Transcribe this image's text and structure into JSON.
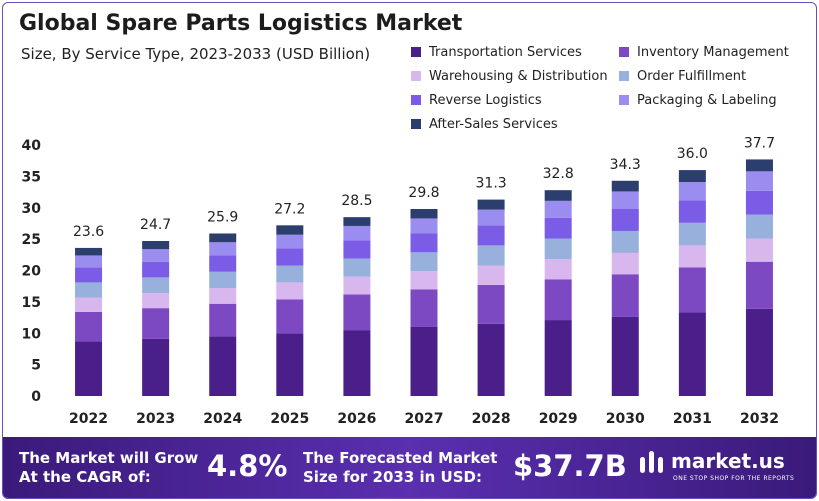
{
  "header": {
    "title": "Global Spare Parts Logistics Market",
    "subtitle": "Size, By Service Type, 2023-2033 (USD Billion)"
  },
  "colors": {
    "Transportation Services": "#4b1f8a",
    "Inventory Management": "#7d49c2",
    "Warehousing & Distribution": "#d8b6ee",
    "Order Fulfillment": "#98b0dc",
    "Reverse Logistics": "#7b5ce6",
    "Packaging & Labeling": "#9b8cf0",
    "After-Sales Services": "#2c3e6e"
  },
  "chart_data": {
    "type": "bar",
    "stacked": true,
    "categories": [
      "2022",
      "2023",
      "2024",
      "2025",
      "2026",
      "2027",
      "2028",
      "2029",
      "2030",
      "2031",
      "2032"
    ],
    "totals": [
      23.6,
      24.7,
      25.9,
      27.2,
      28.5,
      29.8,
      31.3,
      32.8,
      34.3,
      36.0,
      37.7
    ],
    "series": [
      {
        "name": "Transportation Services",
        "values": [
          8.7,
          9.1,
          9.5,
          10.0,
          10.5,
          11.0,
          11.5,
          12.1,
          12.6,
          13.3,
          13.9
        ]
      },
      {
        "name": "Inventory Management",
        "values": [
          4.7,
          4.9,
          5.2,
          5.4,
          5.7,
          6.0,
          6.2,
          6.5,
          6.8,
          7.2,
          7.5
        ]
      },
      {
        "name": "Warehousing & Distribution",
        "values": [
          2.3,
          2.4,
          2.5,
          2.7,
          2.8,
          2.9,
          3.1,
          3.2,
          3.4,
          3.5,
          3.7
        ]
      },
      {
        "name": "Order Fulfillment",
        "values": [
          2.4,
          2.5,
          2.6,
          2.7,
          2.9,
          3.0,
          3.2,
          3.3,
          3.5,
          3.6,
          3.8
        ]
      },
      {
        "name": "Reverse Logistics",
        "values": [
          2.4,
          2.5,
          2.6,
          2.7,
          2.9,
          3.0,
          3.2,
          3.3,
          3.5,
          3.6,
          3.8
        ]
      },
      {
        "name": "Packaging & Labeling",
        "values": [
          1.9,
          2.0,
          2.1,
          2.2,
          2.3,
          2.4,
          2.5,
          2.7,
          2.8,
          2.9,
          3.1
        ]
      },
      {
        "name": "After-Sales Services",
        "values": [
          1.2,
          1.3,
          1.4,
          1.5,
          1.4,
          1.5,
          1.6,
          1.7,
          1.7,
          1.9,
          1.9
        ]
      }
    ],
    "ylim": [
      0,
      40
    ],
    "yticks": [
      0,
      5,
      10,
      15,
      20,
      25,
      30,
      35,
      40
    ],
    "grid": false,
    "legend_position": "top-right"
  },
  "footer": {
    "cagr_label_line1": "The Market will Grow",
    "cagr_label_line2": "At the CAGR of:",
    "cagr_value": "4.8%",
    "forecast_label_line1": "The Forecasted Market",
    "forecast_label_line2": "Size for 2033 in USD:",
    "forecast_value": "$37.7B",
    "brand": "market.us",
    "brand_tagline": "ONE STOP SHOP FOR THE REPORTS"
  }
}
